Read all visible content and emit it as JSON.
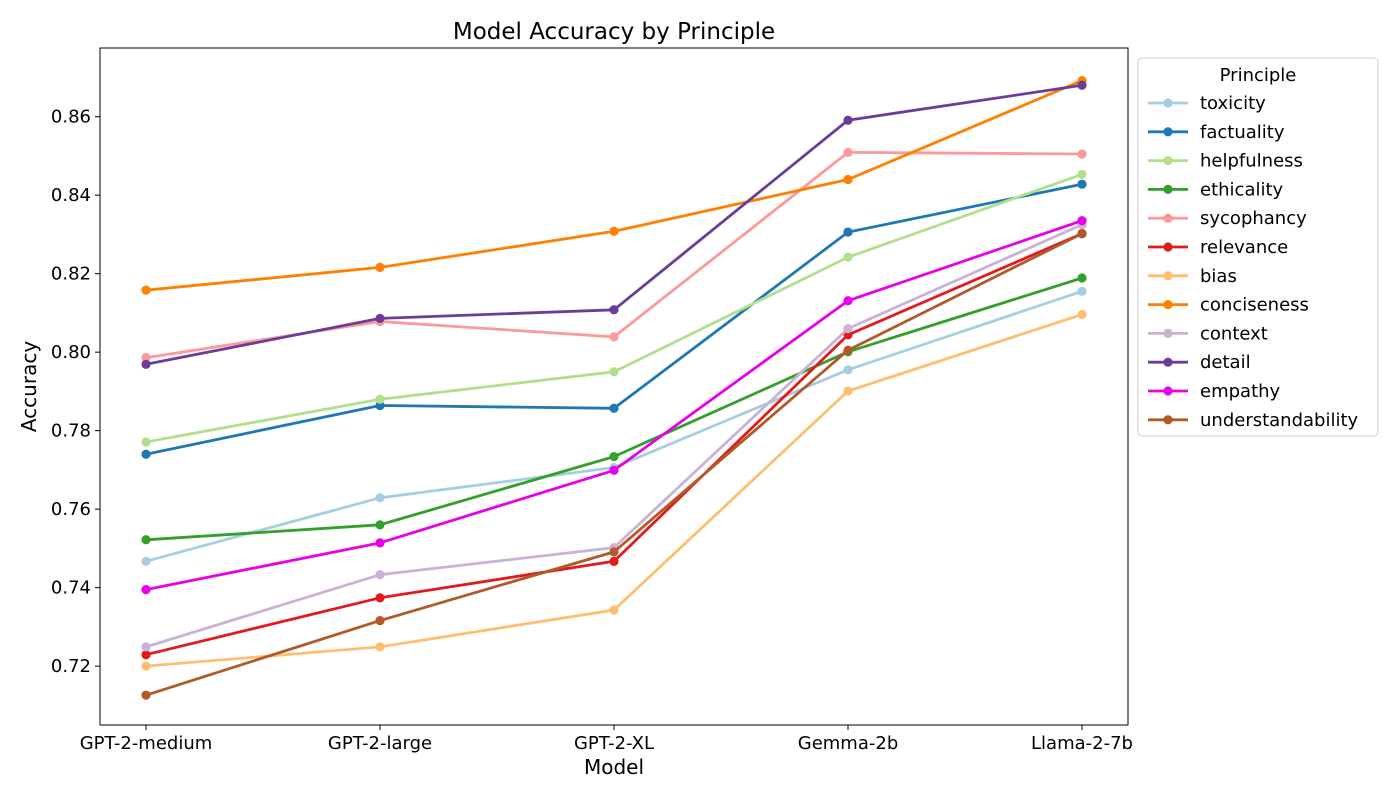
{
  "chart_data": {
    "type": "line",
    "title": "Model Accuracy by Principle",
    "xlabel": "Model",
    "ylabel": "Accuracy",
    "categories": [
      "GPT-2-medium",
      "GPT-2-large",
      "GPT-2-XL",
      "Gemma-2b",
      "Llama-2-7b"
    ],
    "ylim": [
      0.705,
      0.8775
    ],
    "yticks": [
      0.72,
      0.74,
      0.76,
      0.78,
      0.8,
      0.82,
      0.84,
      0.86
    ],
    "ytick_labels": [
      "0.72",
      "0.74",
      "0.76",
      "0.78",
      "0.80",
      "0.82",
      "0.84",
      "0.86"
    ],
    "grid": false,
    "legend": {
      "title": "Principle",
      "placement": "outside-right"
    },
    "series": [
      {
        "name": "toxicity",
        "color": "#a6cee3",
        "values": [
          0.7467,
          0.7629,
          0.7706,
          0.7955,
          0.8155
        ]
      },
      {
        "name": "factuality",
        "color": "#1f78b4",
        "values": [
          0.774,
          0.7864,
          0.7857,
          0.8306,
          0.8428
        ]
      },
      {
        "name": "helpfulness",
        "color": "#b2df8a",
        "values": [
          0.7771,
          0.788,
          0.795,
          0.8242,
          0.8453
        ]
      },
      {
        "name": "ethicality",
        "color": "#33a02c",
        "values": [
          0.7522,
          0.756,
          0.7734,
          0.8001,
          0.8189
        ]
      },
      {
        "name": "sycophancy",
        "color": "#fb9a99",
        "values": [
          0.7986,
          0.8078,
          0.8039,
          0.8509,
          0.8505
        ]
      },
      {
        "name": "relevance",
        "color": "#e31a1c",
        "values": [
          0.7229,
          0.7374,
          0.7467,
          0.8044,
          0.8302
        ]
      },
      {
        "name": "bias",
        "color": "#fdbf6f",
        "values": [
          0.72,
          0.7249,
          0.7343,
          0.7901,
          0.8096
        ]
      },
      {
        "name": "conciseness",
        "color": "#ff7f00",
        "values": [
          0.8158,
          0.8216,
          0.8308,
          0.844,
          0.8692
        ]
      },
      {
        "name": "context",
        "color": "#cab2d6",
        "values": [
          0.7249,
          0.7433,
          0.7502,
          0.806,
          0.8325
        ]
      },
      {
        "name": "detail",
        "color": "#6a3d9a",
        "values": [
          0.7969,
          0.8086,
          0.8108,
          0.8591,
          0.868
        ]
      },
      {
        "name": "empathy",
        "color": "#e800e8",
        "values": [
          0.7395,
          0.7514,
          0.7699,
          0.8131,
          0.8335
        ]
      },
      {
        "name": "understandability",
        "color": "#b15928",
        "values": [
          0.7126,
          0.7316,
          0.7491,
          0.8005,
          0.8302
        ]
      }
    ]
  }
}
